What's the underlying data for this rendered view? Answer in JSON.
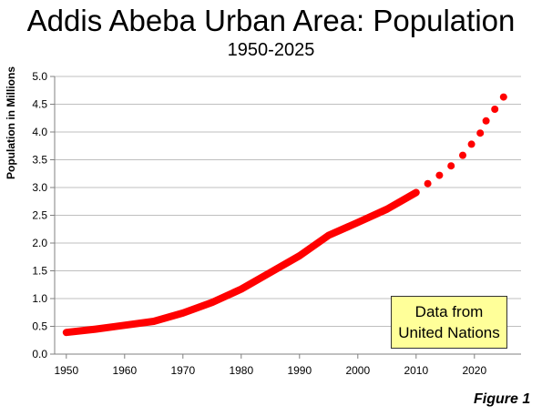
{
  "chart_data": {
    "type": "line",
    "title": "Addis Abeba Urban Area: Population",
    "subtitle": "1950-2025",
    "xlabel": "",
    "ylabel": "Population in Millions",
    "xlim": [
      1948,
      2028
    ],
    "ylim": [
      0,
      5
    ],
    "x_ticks": [
      1950,
      1960,
      1970,
      1980,
      1990,
      2000,
      2010,
      2020
    ],
    "y_ticks": [
      "0.0",
      "0.5",
      "1.0",
      "1.5",
      "2.0",
      "2.5",
      "3.0",
      "3.5",
      "4.0",
      "4.5",
      "5.0"
    ],
    "grid": true,
    "series": [
      {
        "style": "solid",
        "color": "#ff0000",
        "x": [
          1950,
          1955,
          1960,
          1965,
          1970,
          1975,
          1980,
          1985,
          1990,
          1995,
          2000,
          2005,
          2010
        ],
        "values": [
          0.39,
          0.45,
          0.52,
          0.59,
          0.74,
          0.93,
          1.17,
          1.47,
          1.77,
          2.14,
          2.37,
          2.61,
          2.91
        ]
      },
      {
        "style": "dotted",
        "color": "#ff0000",
        "x": [
          2012,
          2014,
          2016,
          2018,
          2019.5,
          2021,
          2022,
          2023.5,
          2025
        ],
        "values": [
          3.07,
          3.22,
          3.39,
          3.58,
          3.78,
          3.98,
          4.2,
          4.41,
          4.63
        ]
      }
    ],
    "annotation": {
      "line1": "Data from",
      "line2": "United Nations"
    },
    "figure_label": "Figure 1"
  }
}
